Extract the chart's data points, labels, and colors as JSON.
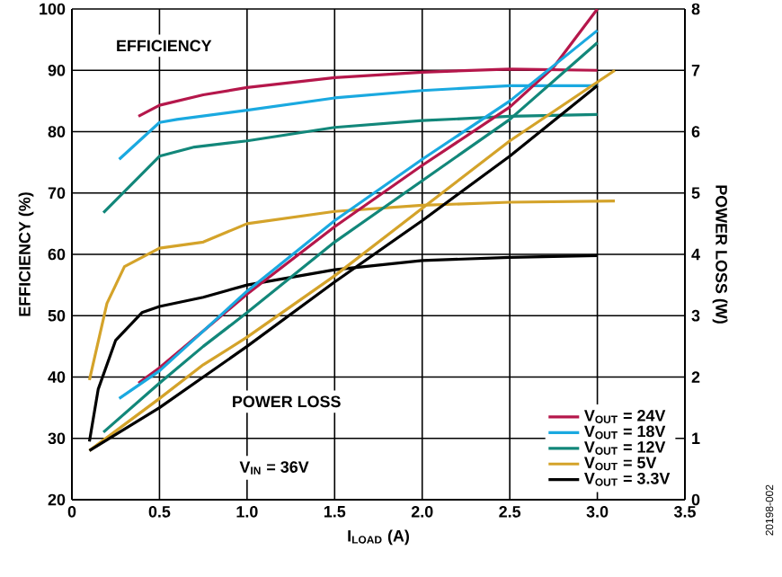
{
  "chart_data": {
    "type": "line",
    "xlabel": "I$_{LOAD}$ (A)",
    "ylabel": "EFFICIENCY (%)",
    "y2label": "POWER LOSS (W)",
    "xlim": [
      0,
      3.5
    ],
    "xticks": [
      0,
      0.5,
      {
        "value": 1,
        "label": "1.0"
      },
      1.5,
      {
        "value": 2,
        "label": "2.0"
      },
      2.5,
      {
        "value": 3,
        "label": "3.0"
      },
      3.5
    ],
    "ylim": [
      20,
      100
    ],
    "yticks": [
      20,
      30,
      40,
      50,
      60,
      70,
      80,
      90,
      100
    ],
    "y2lim": [
      0,
      8
    ],
    "y2ticks": [
      0,
      1,
      2,
      3,
      4,
      5,
      6,
      7,
      8
    ],
    "grid": true,
    "legend": "bottom right",
    "annotations": [
      "EFFICIENCY",
      "POWER LOSS",
      "V$_{IN}$ = 36V",
      "20198-002"
    ],
    "series": [
      {
        "name": "V$_{OUT}$ = 24V",
        "color": "#b5174b",
        "x": [
          0.38,
          0.5,
          0.75,
          1.0,
          1.5,
          2.0,
          2.5,
          3.0
        ],
        "values": [
          82.5,
          84.3,
          86,
          87.2,
          88.8,
          89.7,
          90.2,
          90.0
        ]
      },
      {
        "name": "V$_{OUT}$ = 18V",
        "color": "#1aa9e0",
        "x": [
          0.27,
          0.5,
          0.6,
          1.0,
          1.5,
          2.0,
          2.5,
          3.0
        ],
        "values": [
          75.5,
          81.5,
          82,
          83.5,
          85.5,
          86.7,
          87.5,
          87.5
        ]
      },
      {
        "name": "V$_{OUT}$ = 12V",
        "color": "#12877a",
        "x": [
          0.18,
          0.5,
          0.7,
          1.0,
          1.5,
          2.0,
          2.5,
          3.0
        ],
        "values": [
          66.8,
          76,
          77.5,
          78.5,
          80.7,
          81.8,
          82.5,
          82.8
        ]
      },
      {
        "name": "V$_{OUT}$ = 5V",
        "color": "#d4a32a",
        "x": [
          0.1,
          0.2,
          0.3,
          0.5,
          0.75,
          1.0,
          1.5,
          2.0,
          2.5,
          3.1
        ],
        "values": [
          39.5,
          52,
          58,
          61,
          62,
          65,
          67,
          68,
          68.5,
          68.7
        ]
      },
      {
        "name": "V$_{OUT}$ = 3.3V",
        "color": "#000000",
        "x": [
          0.1,
          0.15,
          0.25,
          0.4,
          0.5,
          0.75,
          1.0,
          1.5,
          2.0,
          2.5,
          3.0
        ],
        "values": [
          29.5,
          38,
          46,
          50.5,
          51.5,
          53,
          55,
          57.5,
          59,
          59.5,
          59.8
        ]
      },
      {
        "axis": "y2",
        "color": "#b5174b",
        "x": [
          0.38,
          0.5,
          0.75,
          1.0,
          1.5,
          2.0,
          2.5,
          2.75,
          3.0
        ],
        "values": [
          1.9,
          2.15,
          2.75,
          3.35,
          4.45,
          5.45,
          6.4,
          7.05,
          8.0
        ]
      },
      {
        "axis": "y2",
        "color": "#1aa9e0",
        "x": [
          0.27,
          0.5,
          0.75,
          1.0,
          1.5,
          2.0,
          2.5,
          3.0
        ],
        "values": [
          1.65,
          2.1,
          2.75,
          3.4,
          4.55,
          5.55,
          6.5,
          7.65
        ]
      },
      {
        "axis": "y2",
        "color": "#12877a",
        "x": [
          0.18,
          0.5,
          0.75,
          1.0,
          1.5,
          2.0,
          2.5,
          3.0
        ],
        "values": [
          1.1,
          1.9,
          2.5,
          3.05,
          4.2,
          5.2,
          6.2,
          7.45
        ]
      },
      {
        "axis": "y2",
        "color": "#d4a32a",
        "x": [
          0.1,
          0.5,
          0.75,
          1.0,
          1.5,
          2.0,
          2.5,
          3.1
        ],
        "values": [
          0.8,
          1.65,
          2.2,
          2.65,
          3.65,
          4.75,
          5.85,
          7.0
        ]
      },
      {
        "axis": "y2",
        "color": "#000000",
        "x": [
          0.1,
          0.5,
          1.0,
          1.5,
          2.0,
          2.5,
          3.0
        ],
        "values": [
          0.8,
          1.5,
          2.5,
          3.55,
          4.55,
          5.6,
          6.75
        ]
      }
    ]
  }
}
